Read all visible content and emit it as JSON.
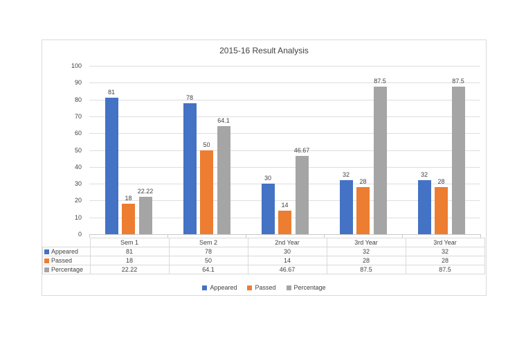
{
  "colors": {
    "appeared": "#4472C4",
    "passed": "#ED7D31",
    "percentage": "#A5A5A5",
    "gridline": "#DEDEDE",
    "axis_text": "#404040",
    "chart_border": "#D9D9D9"
  },
  "chart_data": {
    "type": "bar",
    "title": "2015-16 Result Analysis",
    "categories": [
      "Sem 1",
      "Sem 2",
      "2nd Year",
      "3rd Year",
      "3rd Year"
    ],
    "series": [
      {
        "name": "Appeared",
        "color": "#4472C4",
        "values": [
          81,
          78,
          30,
          32,
          32
        ],
        "labels": [
          "81",
          "78",
          "30",
          "32",
          "32"
        ]
      },
      {
        "name": "Passed",
        "color": "#ED7D31",
        "values": [
          18,
          50,
          14,
          28,
          28
        ],
        "labels": [
          "18",
          "50",
          "14",
          "28",
          "28"
        ]
      },
      {
        "name": "Percentage",
        "color": "#A5A5A5",
        "values": [
          22.22,
          64.1,
          46.67,
          87.5,
          87.5
        ],
        "labels": [
          "22.22",
          "64.1",
          "46.67",
          "87.5",
          "87.5"
        ]
      }
    ],
    "y_axis": {
      "min": 0,
      "max": 100,
      "step": 10,
      "tick_labels": [
        "0",
        "10",
        "20",
        "30",
        "40",
        "50",
        "60",
        "70",
        "80",
        "90",
        "100"
      ]
    },
    "grid": true,
    "legend_position": "bottom",
    "legend_entries": [
      "Appeared",
      "Passed",
      "Percentage"
    ],
    "data_table_shown": true
  }
}
